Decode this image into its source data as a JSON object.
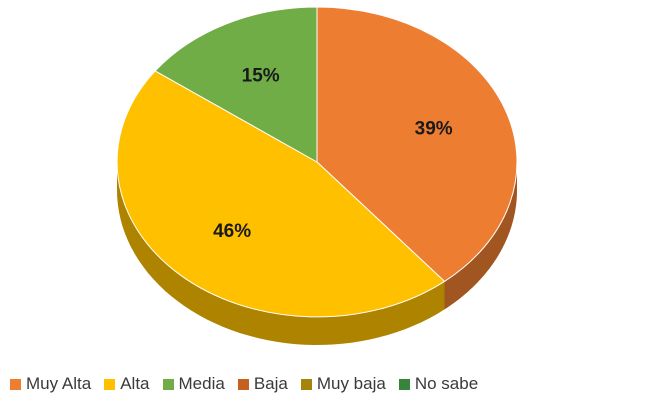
{
  "chart_data": {
    "type": "pie",
    "style": "3d",
    "categories": [
      "Muy Alta",
      "Alta",
      "Media",
      "Baja",
      "Muy baja",
      "No sabe"
    ],
    "values": [
      39,
      46,
      15,
      0,
      0,
      0
    ],
    "value_labels": [
      "39%",
      "46%",
      "15%",
      "",
      "",
      ""
    ],
    "colors": [
      "#ED7D31",
      "#FFC000",
      "#70AD47",
      "#C5601F",
      "#A5840A",
      "#38843A"
    ],
    "legend_position": "bottom"
  }
}
